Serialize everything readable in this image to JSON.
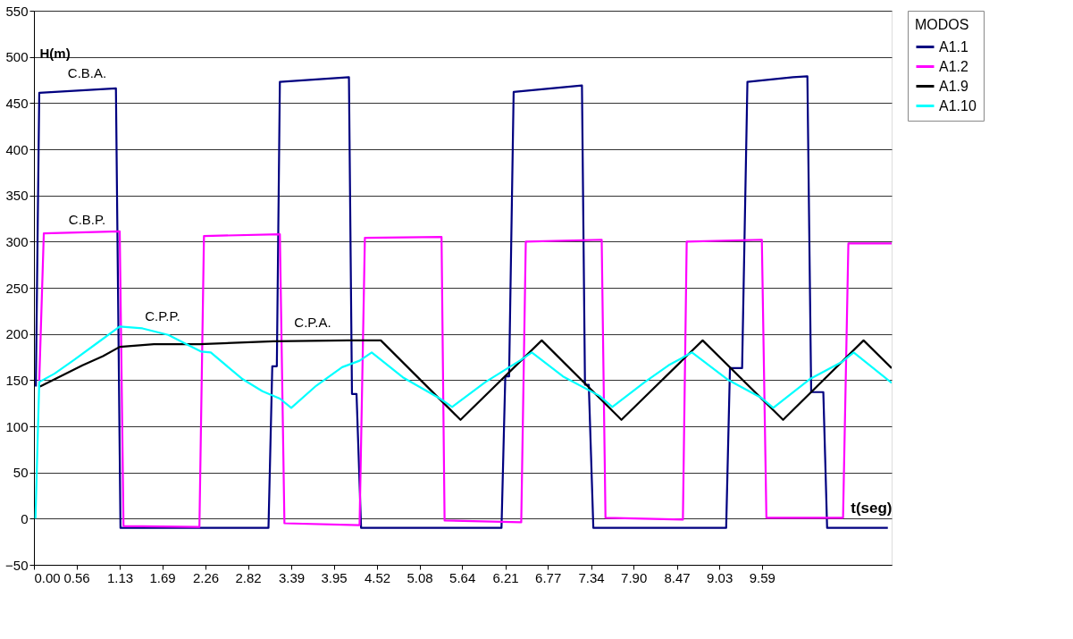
{
  "chart_data": {
    "type": "line",
    "xlabel": "t(seg)",
    "ylabel": "H(m)",
    "legend_title": "MODOS",
    "xlim": [
      0,
      11.3
    ],
    "ylim": [
      -50,
      550
    ],
    "xticks": [
      {
        "value": 0,
        "label": "0.00"
      },
      {
        "value": 0.56,
        "label": "0.56"
      },
      {
        "value": 1.13,
        "label": "1.13"
      },
      {
        "value": 1.69,
        "label": "1.69"
      },
      {
        "value": 2.26,
        "label": "2.26"
      },
      {
        "value": 2.82,
        "label": "2.82"
      },
      {
        "value": 3.39,
        "label": "3.39"
      },
      {
        "value": 3.95,
        "label": "3.95"
      },
      {
        "value": 4.52,
        "label": "4.52"
      },
      {
        "value": 5.08,
        "label": "5.08"
      },
      {
        "value": 5.64,
        "label": "5.64"
      },
      {
        "value": 6.21,
        "label": "6.21"
      },
      {
        "value": 6.77,
        "label": "6.77"
      },
      {
        "value": 7.34,
        "label": "7.34"
      },
      {
        "value": 7.9,
        "label": "7.90"
      },
      {
        "value": 8.47,
        "label": "8.47"
      },
      {
        "value": 9.03,
        "label": "9.03"
      },
      {
        "value": 9.59,
        "label": "9.59"
      }
    ],
    "yticks": [
      -50,
      0,
      50,
      100,
      150,
      200,
      250,
      300,
      350,
      400,
      450,
      500,
      550
    ],
    "grid": "y",
    "legend": "right",
    "line_style": "solid",
    "marker": "none",
    "annotations": [
      "C.B.A.",
      "C.B.P.",
      "C.P.P.",
      "C.P.A."
    ],
    "series": [
      {
        "name": "A1.1",
        "color": "#000080",
        "x": [
          0.025,
          0.07,
          1.08,
          1.14,
          3.09,
          3.14,
          3.2,
          3.24,
          4.15,
          4.19,
          4.25,
          4.31,
          6.16,
          6.21,
          6.26,
          6.32,
          7.22,
          7.26,
          7.31,
          7.37,
          9.12,
          9.17,
          9.33,
          9.4,
          10.0,
          10.19,
          10.24,
          10.4,
          10.45,
          11.25
        ],
        "values": [
          143,
          461,
          466,
          -10,
          -10,
          165,
          165,
          473,
          478,
          135,
          135,
          -10,
          -10,
          154,
          154,
          462,
          469,
          145,
          145,
          -10,
          -10,
          163,
          163,
          473,
          478,
          479,
          137,
          137,
          -10,
          -10
        ]
      },
      {
        "name": "A1.2",
        "color": "#ff00ff",
        "x": [
          0.07,
          0.13,
          1.13,
          1.18,
          2.18,
          2.24,
          3.24,
          3.3,
          4.29,
          4.36,
          5.37,
          5.41,
          6.42,
          6.48,
          7.48,
          7.53,
          8.55,
          8.6,
          9.59,
          9.65,
          10.66,
          10.73,
          11.3
        ],
        "values": [
          149,
          309,
          311,
          -8,
          -9,
          306,
          308,
          -5,
          -7,
          304,
          305,
          -2,
          -4,
          300,
          302,
          1,
          -1,
          300,
          302,
          1,
          1,
          298,
          298
        ]
      },
      {
        "name": "A1.9",
        "color": "#000000",
        "x": [
          0.08,
          0.64,
          0.91,
          1.13,
          1.58,
          2.18,
          3.16,
          4.14,
          4.57,
          5.62,
          6.69,
          7.74,
          8.81,
          9.87,
          10.93,
          11.3
        ],
        "values": [
          143,
          166,
          176,
          186,
          189,
          189,
          192,
          193,
          193,
          107,
          193,
          107,
          193,
          107,
          193,
          163
        ]
      },
      {
        "name": "A1.10",
        "color": "#00ffff",
        "x": [
          0.02,
          0.07,
          0.27,
          0.53,
          0.83,
          1.13,
          1.43,
          1.77,
          2.03,
          2.2,
          2.33,
          2.56,
          2.75,
          3.01,
          3.24,
          3.39,
          3.72,
          4.06,
          4.29,
          4.45,
          4.86,
          5.35,
          5.51,
          5.95,
          6.4,
          6.56,
          6.97,
          7.45,
          7.62,
          8.05,
          8.36,
          8.67,
          9.15,
          9.58,
          9.74,
          10.22,
          10.65,
          10.8,
          11.3
        ],
        "values": [
          0,
          148,
          157,
          172,
          190,
          208,
          206,
          199,
          188,
          181,
          180,
          164,
          151,
          138,
          130,
          120,
          144,
          164,
          171,
          180,
          153,
          130,
          121,
          148,
          171,
          180,
          154,
          133,
          121,
          148,
          166,
          180,
          150,
          131,
          120,
          151,
          170,
          180,
          147
        ]
      }
    ]
  }
}
